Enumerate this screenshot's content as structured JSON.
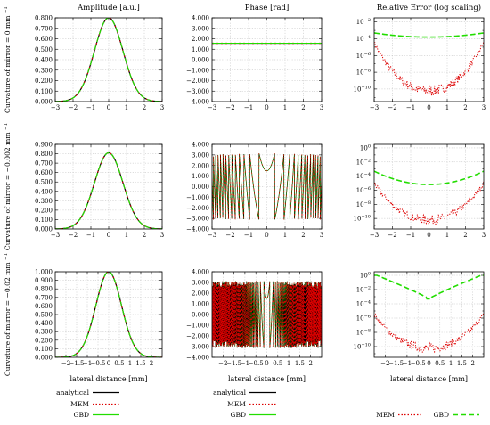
{
  "figure": {
    "column_titles": [
      "Amplitude [a.u.]",
      "Phase [rad]",
      "Relative Error (log scaling)"
    ],
    "row_labels": [
      {
        "text": "Curvature of mirror = 0 mm",
        "sup": "−1"
      },
      {
        "text": "Curvature of mirror = −0.002 mm",
        "sup": "−1"
      },
      {
        "text": "Curvature of mirror = −0.02 mm",
        "sup": "−1"
      }
    ],
    "xlabel": "lateral distance [mm]",
    "legends": [
      [
        {
          "label": "analytical",
          "color": "#000000",
          "dash": "solid"
        },
        {
          "label": "MEM",
          "color": "#dd0000",
          "dash": "dotted"
        },
        {
          "label": "GBD",
          "color": "#22dd00",
          "dash": "solid"
        }
      ],
      [
        {
          "label": "analytical",
          "color": "#000000",
          "dash": "solid"
        },
        {
          "label": "MEM",
          "color": "#dd0000",
          "dash": "dotted"
        },
        {
          "label": "GBD",
          "color": "#22dd00",
          "dash": "solid"
        }
      ],
      [
        {
          "label": "MEM",
          "color": "#dd0000",
          "dash": "dotted"
        },
        {
          "label": "GBD",
          "color": "#22dd00",
          "dash": "dashed"
        }
      ]
    ]
  },
  "chart_data": [
    {
      "row": 0,
      "col": 0,
      "type": "line",
      "kind": "amp",
      "xlim": [
        -3,
        3
      ],
      "xticks": [
        -3,
        -2,
        -1,
        0,
        1,
        2,
        3
      ],
      "ylim": [
        0,
        0.8
      ],
      "yticks": [
        "0.000",
        "0.100",
        "0.200",
        "0.300",
        "0.400",
        "0.500",
        "0.600",
        "0.700",
        "0.800"
      ],
      "peak": 0.8,
      "width": 0.8,
      "grid": true,
      "series": [
        {
          "name": "analytical"
        },
        {
          "name": "MEM"
        },
        {
          "name": "GBD"
        }
      ]
    },
    {
      "row": 0,
      "col": 1,
      "type": "line",
      "kind": "phase_flat",
      "xlim": [
        -3,
        3
      ],
      "xticks": [
        -3,
        -2,
        -1,
        0,
        1,
        2,
        3
      ],
      "ylim": [
        -4,
        4
      ],
      "yticks": [
        "-4.000",
        "-3.000",
        "-2.000",
        "-1.000",
        "0.000",
        "1.000",
        "2.000",
        "3.000",
        "4.000"
      ],
      "level": 1.57,
      "grid": true,
      "series": [
        {
          "name": "analytical"
        },
        {
          "name": "MEM"
        },
        {
          "name": "GBD"
        }
      ]
    },
    {
      "row": 0,
      "col": 2,
      "type": "line",
      "kind": "err",
      "log": true,
      "xlim": [
        -3,
        3
      ],
      "xticks": [
        -3,
        -2,
        -1,
        0,
        1,
        2,
        3
      ],
      "ylog": [
        -11.5,
        -1.5
      ],
      "ytick_exps": [
        -10,
        -8,
        -6,
        -4,
        -2
      ],
      "gbd_center": -3.8,
      "gbd_edge": -3.3,
      "mem_center": -10.2,
      "mem_edge": -4.5,
      "gbd_dip": false,
      "grid": true,
      "series": [
        {
          "name": "MEM"
        },
        {
          "name": "GBD"
        }
      ]
    },
    {
      "row": 1,
      "col": 0,
      "type": "line",
      "kind": "amp",
      "xlim": [
        -3,
        3
      ],
      "xticks": [
        -3,
        -2,
        -1,
        0,
        1,
        2,
        3
      ],
      "ylim": [
        0,
        0.9
      ],
      "yticks": [
        "0.000",
        "0.100",
        "0.200",
        "0.300",
        "0.400",
        "0.500",
        "0.600",
        "0.700",
        "0.800",
        "0.900"
      ],
      "peak": 0.81,
      "width": 0.8,
      "grid": true,
      "series": [
        {
          "name": "analytical"
        },
        {
          "name": "MEM"
        },
        {
          "name": "GBD"
        }
      ]
    },
    {
      "row": 1,
      "col": 1,
      "type": "line",
      "kind": "phase_wrap",
      "xlim": [
        -3,
        3
      ],
      "xticks": [
        -3,
        -2,
        -1,
        0,
        1,
        2,
        3
      ],
      "ylim": [
        -4,
        4
      ],
      "yticks": [
        "-4.000",
        "-3.000",
        "-2.000",
        "-1.000",
        "0.000",
        "1.000",
        "2.000",
        "3.000",
        "4.000"
      ],
      "curvature": 9.0,
      "grid": true,
      "series": [
        {
          "name": "analytical"
        },
        {
          "name": "MEM"
        },
        {
          "name": "GBD"
        }
      ]
    },
    {
      "row": 1,
      "col": 2,
      "type": "line",
      "kind": "err",
      "log": true,
      "xlim": [
        -3,
        3
      ],
      "xticks": [
        -3,
        -2,
        -1,
        0,
        1,
        2,
        3
      ],
      "ylog": [
        -11.5,
        0.5
      ],
      "ytick_exps": [
        -10,
        -8,
        -6,
        -4,
        -2,
        0
      ],
      "gbd_center": -5.2,
      "gbd_edge": -3.3,
      "mem_center": -10.2,
      "mem_edge": -5.0,
      "gbd_dip": false,
      "grid": true,
      "series": [
        {
          "name": "MEM"
        },
        {
          "name": "GBD"
        }
      ]
    },
    {
      "row": 2,
      "col": 0,
      "type": "line",
      "kind": "amp",
      "xlim": [
        -2.5,
        2.5
      ],
      "xticks": [
        -2,
        -1.5,
        -1,
        -0.5,
        0,
        0.5,
        1,
        1.5,
        2
      ],
      "ylim": [
        0,
        1.0
      ],
      "yticks": [
        "0.000",
        "0.100",
        "0.200",
        "0.300",
        "0.400",
        "0.500",
        "0.600",
        "0.700",
        "0.800",
        "0.900",
        "1.000"
      ],
      "peak": 1.0,
      "width": 0.6,
      "grid": true,
      "series": [
        {
          "name": "analytical"
        },
        {
          "name": "MEM"
        },
        {
          "name": "GBD"
        }
      ]
    },
    {
      "row": 2,
      "col": 1,
      "type": "line",
      "kind": "phase_wrap",
      "xlim": [
        -2.5,
        2.5
      ],
      "xticks": [
        -2,
        -1.5,
        -1,
        -0.5,
        0,
        0.5,
        1,
        1.5,
        2
      ],
      "ylim": [
        -4,
        4
      ],
      "yticks": [
        "-4.000",
        "-3.000",
        "-2.000",
        "-1.000",
        "0.000",
        "1.000",
        "2.000",
        "3.000",
        "4.000"
      ],
      "curvature": 90.0,
      "grid": true,
      "series": [
        {
          "name": "analytical"
        },
        {
          "name": "MEM"
        },
        {
          "name": "GBD"
        }
      ]
    },
    {
      "row": 2,
      "col": 2,
      "type": "line",
      "kind": "err",
      "log": true,
      "xlim": [
        -2.5,
        2.5
      ],
      "xticks": [
        -2,
        -1.5,
        -1,
        -0.5,
        0,
        0.5,
        1,
        1.5,
        2
      ],
      "ylog": [
        -11.5,
        0.5
      ],
      "ytick_exps": [
        -10,
        -8,
        -6,
        -4,
        -2,
        0
      ],
      "gbd_center": -3.3,
      "gbd_edge": 0.0,
      "mem_center": -10.2,
      "mem_edge": -5.5,
      "gbd_dip": true,
      "grid": true,
      "series": [
        {
          "name": "MEM"
        },
        {
          "name": "GBD"
        }
      ]
    }
  ]
}
